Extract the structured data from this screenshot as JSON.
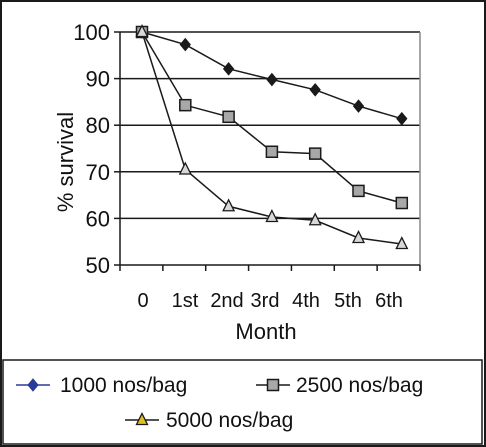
{
  "chart_data": {
    "type": "line",
    "categories": [
      "0",
      "1st",
      "2nd",
      "3rd",
      "4th",
      "5th",
      "6th"
    ],
    "xlabel": "Month",
    "ylabel": "% survival",
    "ylim": [
      50,
      100
    ],
    "yticks": [
      50,
      60,
      70,
      80,
      90,
      100
    ],
    "grid": true,
    "legend_position": "bottom",
    "series": [
      {
        "name": "1000 nos/bag",
        "marker": "diamond",
        "color": "#1a1a1a",
        "marker_fill": "#1a1a1a",
        "legend_line_color": "#2a3a9a",
        "legend_marker_color": "#2a3a9a",
        "values": [
          100,
          97.3,
          92.1,
          89.8,
          87.6,
          84.1,
          81.4
        ]
      },
      {
        "name": "2500 nos/bag",
        "marker": "square",
        "color": "#1a1a1a",
        "marker_fill": "#a8a8a8",
        "legend_line_color": "#1a1a1a",
        "legend_marker_color": "#a8a8a8",
        "values": [
          100,
          84.3,
          81.8,
          74.3,
          73.9,
          65.9,
          63.3
        ]
      },
      {
        "name": "5000 nos/bag",
        "marker": "triangle",
        "color": "#1a1a1a",
        "marker_fill": "#d8d8d8",
        "legend_line_color": "#1a1a1a",
        "legend_marker_color": "#e0c020",
        "values": [
          100,
          70.5,
          62.6,
          60.3,
          59.6,
          55.8,
          54.5
        ]
      }
    ]
  }
}
